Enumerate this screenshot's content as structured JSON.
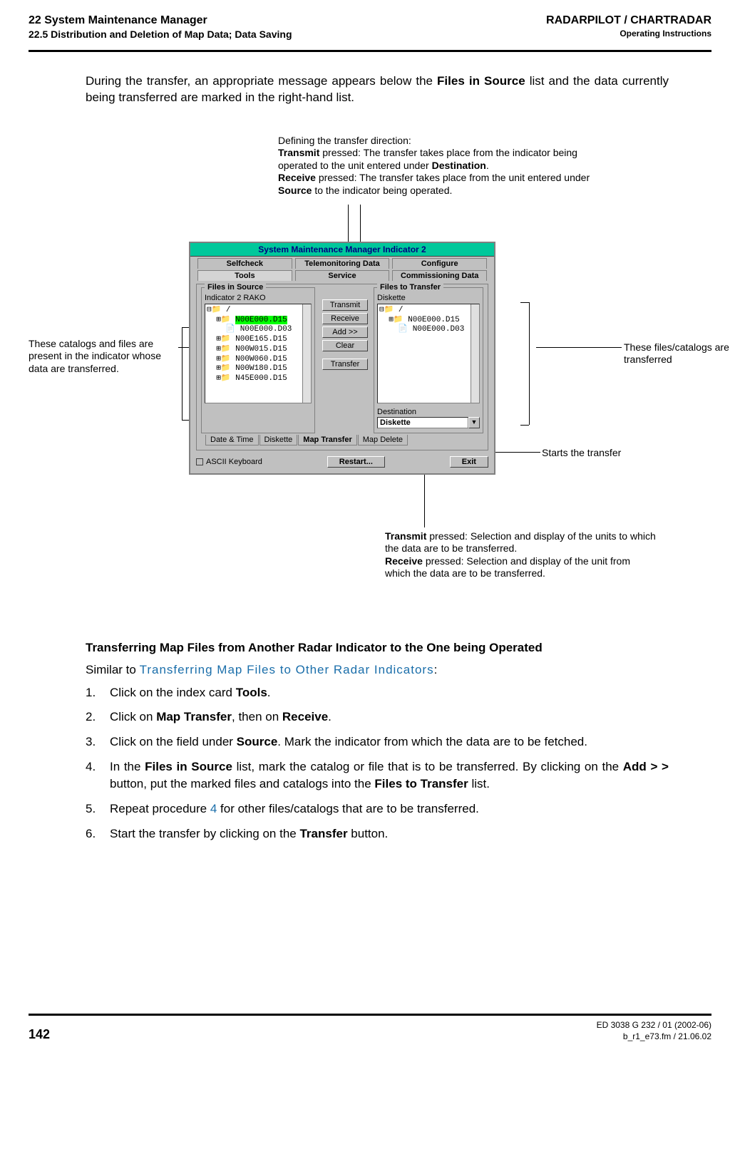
{
  "header": {
    "left_top": "22  System Maintenance Manager",
    "left_sub": "22.5  Distribution and Deletion of Map Data; Data Saving",
    "right_top": "RADARPILOT / CHARTRADAR",
    "right_sub": "Operating Instructions"
  },
  "intro_html": "During the transfer, an appropriate message appears below the <b>Files in Source</b> list and the data currently being transferred are marked in the right-hand list.",
  "callouts": {
    "top": {
      "lines": [
        "Defining the transfer direction:",
        "<b>Transmit</b> pressed: The transfer takes place from the indicator being operated to the unit entered under <b>Destination</b>.",
        "<b>Receive</b> pressed: The transfer takes place from the unit entered under <b>Source</b> to the indicator being operated."
      ]
    },
    "left": "These catalogs and files are present in the indicator whose data are transferred.",
    "right_top": "These files/catalogs are transferred",
    "right_mid": "Starts the transfer",
    "bottom": {
      "lines": [
        "<b>Transmit</b> pressed: Selection and display of the units to which the data are to be transferred.",
        "<b>Receive</b> pressed: Selection and display of the unit from which the data are to be transferred."
      ]
    }
  },
  "ui": {
    "title": "System Maintenance Manager Indicator 2",
    "tabs_row1": [
      "Selfcheck",
      "Telemonitoring Data",
      "Configure"
    ],
    "tabs_row2": [
      "Tools",
      "Service",
      "Commissioning Data"
    ],
    "files_in_source": {
      "legend": "Files in Source",
      "indicator": "Indicator 2 RAKO",
      "tree": [
        "⊟📁 /",
        "  ⊞📁 N00E000.D15",
        "    📄 N00E000.D03",
        "  ⊞📁 N00E165.D15",
        "  ⊞📁 N00W015.D15",
        "  ⊞📁 N00W060.D15",
        "  ⊞📁 N00W180.D15",
        "  ⊞📁 N45E000.D15"
      ],
      "selected_index": 1
    },
    "btn_col": {
      "transmit": "Transmit",
      "receive": "Receive",
      "add": "Add >>",
      "clear": "Clear",
      "transfer": "Transfer"
    },
    "files_to_transfer": {
      "legend": "Files to Transfer",
      "diskette": "Diskette",
      "tree": [
        "⊟📁 /",
        "  ⊞📁 N00E000.D15",
        "    📄 N00E000.D03"
      ]
    },
    "destination": {
      "label": "Destination",
      "value": "Diskette"
    },
    "bottom_tabs": [
      "Date & Time",
      "Diskette",
      "Map Transfer",
      "Map Delete"
    ],
    "bottom_active": 2,
    "footer": {
      "ascii": "ASCII Keyboard",
      "restart": "Restart...",
      "exit": "Exit"
    },
    "colors": {
      "title_bg": "#00c89b",
      "title_fg": "#000080",
      "window_bg": "#c0c0c0",
      "selected_bg": "#00ff00"
    }
  },
  "section_heading": "Transferring Map Files from Another Radar Indicator to the One being Operated",
  "similar_prefix": "Similar to ",
  "similar_link": "Transferring Map Files to Other Radar Indicators",
  "similar_suffix": ":",
  "steps": [
    "Click on the index card <b>Tools</b>.",
    "Click on <b>Map Transfer</b>, then on <b>Receive</b>.",
    "Click on the field under <b>Source</b>. Mark the indicator from which the data are to be fetched.",
    "In the <b>Files in Source</b> list, mark the catalog or file that is to be transferred. By clicking on the <b>Add > ></b> button, put the marked files and catalogs into the <b>Files to Transfer</b> list.",
    "Repeat procedure <span class=\"ref4\">4</span> for other files/catalogs that are to be transferred.",
    "Start the transfer by clicking on the <b>Transfer</b> button."
  ],
  "footer": {
    "page": "142",
    "doc_id": "ED 3038 G 232 / 01 (2002-06)",
    "file": "b_r1_e73.fm / 21.06.02"
  }
}
